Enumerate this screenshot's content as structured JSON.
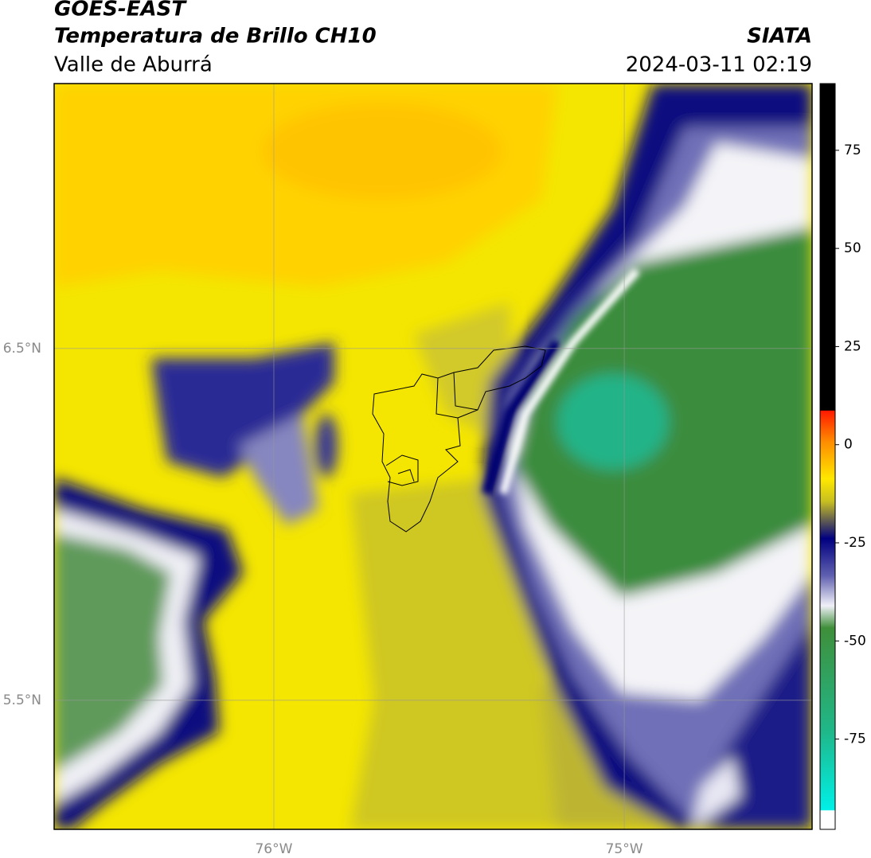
{
  "map": {
    "title": "GOES-EAST",
    "subtitle": "Temperatura de Brillo CH10",
    "source": "SIATA",
    "region": "Valle de Aburrá",
    "datetime": "2024-03-11 02:19",
    "xlim": [
      -76.627,
      -74.464
    ],
    "ylim": [
      5.133,
      7.253
    ],
    "xticks": [
      {
        "value": -76,
        "label": "76°W"
      },
      {
        "value": -75,
        "label": "75°W"
      }
    ],
    "yticks": [
      {
        "value": 6.5,
        "label": "6.5°N"
      },
      {
        "value": 5.5,
        "label": "5.5°N"
      }
    ],
    "colorbar": {
      "lim": [
        -98,
        92
      ],
      "ticks": [
        75,
        50,
        25,
        0,
        -25,
        -50,
        -75
      ]
    }
  }
}
